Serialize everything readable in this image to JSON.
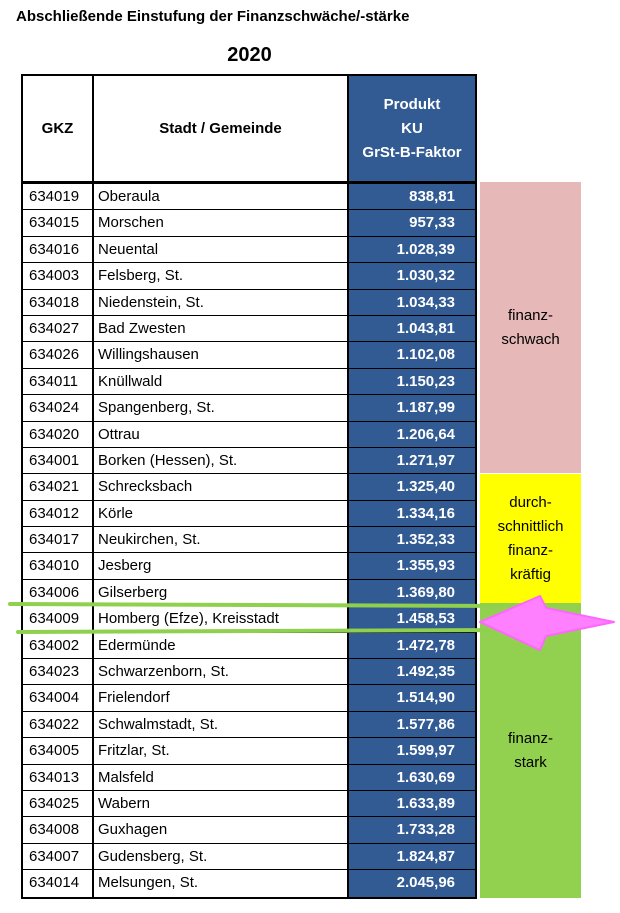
{
  "title": "Abschließende Einstufung der Finanzschwäche/-stärke",
  "year": "2020",
  "headers": {
    "gkz": "GKZ",
    "stadt": "Stadt / Gemeinde",
    "produkt_lines": [
      "Produkt",
      "KU",
      "GrSt-B-Faktor"
    ]
  },
  "rows": [
    {
      "gkz": "634019",
      "name": "Oberaula",
      "value": "838,81"
    },
    {
      "gkz": "634015",
      "name": "Morschen",
      "value": "957,33"
    },
    {
      "gkz": "634016",
      "name": "Neuental",
      "value": "1.028,39"
    },
    {
      "gkz": "634003",
      "name": "Felsberg, St.",
      "value": "1.030,32"
    },
    {
      "gkz": "634018",
      "name": "Niedenstein, St.",
      "value": "1.034,33"
    },
    {
      "gkz": "634027",
      "name": "Bad Zwesten",
      "value": "1.043,81"
    },
    {
      "gkz": "634026",
      "name": "Willingshausen",
      "value": "1.102,08"
    },
    {
      "gkz": "634011",
      "name": "Knüllwald",
      "value": "1.150,23"
    },
    {
      "gkz": "634024",
      "name": "Spangenberg, St.",
      "value": "1.187,99"
    },
    {
      "gkz": "634020",
      "name": "Ottrau",
      "value": "1.206,64"
    },
    {
      "gkz": "634001",
      "name": "Borken (Hessen), St.",
      "value": "1.271,97"
    },
    {
      "gkz": "634021",
      "name": "Schrecksbach",
      "value": "1.325,40"
    },
    {
      "gkz": "634012",
      "name": "Körle",
      "value": "1.334,16"
    },
    {
      "gkz": "634017",
      "name": "Neukirchen, St.",
      "value": "1.352,33"
    },
    {
      "gkz": "634010",
      "name": "Jesberg",
      "value": "1.355,93"
    },
    {
      "gkz": "634006",
      "name": "Gilserberg",
      "value": "1.369,80"
    },
    {
      "gkz": "634009",
      "name": "Homberg (Efze), Kreisstadt",
      "value": "1.458,53"
    },
    {
      "gkz": "634002",
      "name": "Edermünde",
      "value": "1.472,78"
    },
    {
      "gkz": "634023",
      "name": "Schwarzenborn, St.",
      "value": "1.492,35"
    },
    {
      "gkz": "634004",
      "name": "Frielendorf",
      "value": "1.514,90"
    },
    {
      "gkz": "634022",
      "name": "Schwalmstadt, St.",
      "value": "1.577,86"
    },
    {
      "gkz": "634005",
      "name": "Fritzlar, St.",
      "value": "1.599,97"
    },
    {
      "gkz": "634013",
      "name": "Malsfeld",
      "value": "1.630,69"
    },
    {
      "gkz": "634025",
      "name": "Wabern",
      "value": "1.633,89"
    },
    {
      "gkz": "634008",
      "name": "Guxhagen",
      "value": "1.733,28"
    },
    {
      "gkz": "634007",
      "name": "Gudensberg, St.",
      "value": "1.824,87"
    },
    {
      "gkz": "634014",
      "name": "Melsungen, St.",
      "value": "2.045,96"
    }
  ],
  "bands": {
    "schwach": [
      "finanz-",
      "schwach"
    ],
    "mittel": [
      "durch-",
      "schnittlich",
      "finanz-",
      "kräftig"
    ],
    "stark": [
      "finanz-",
      "stark"
    ]
  },
  "colors": {
    "value_column": "#325b94",
    "band_schwach": "#e6b8b8",
    "band_mittel": "#ffff00",
    "band_stark": "#92d050",
    "highlight_line": "#8fd14f",
    "arrow": "#ff80ff"
  },
  "highlighted_row_gkz": "634009"
}
